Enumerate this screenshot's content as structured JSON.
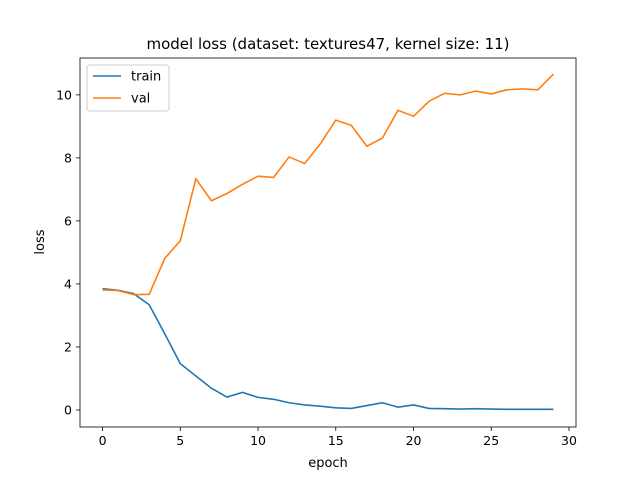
{
  "chart_data": {
    "type": "line",
    "title": "model loss (dataset: textures47, kernel size: 11)",
    "xlabel": "epoch",
    "ylabel": "loss",
    "xlim": [
      -1.45,
      30.45
    ],
    "ylim": [
      -0.54,
      11.17
    ],
    "xticks": [
      0,
      5,
      10,
      15,
      20,
      25,
      30
    ],
    "yticks": [
      0,
      2,
      4,
      6,
      8,
      10
    ],
    "grid": false,
    "legend_position": "upper left",
    "x": [
      0,
      1,
      2,
      3,
      4,
      5,
      6,
      7,
      8,
      9,
      10,
      11,
      12,
      13,
      14,
      15,
      16,
      17,
      18,
      19,
      20,
      21,
      22,
      23,
      24,
      25,
      26,
      27,
      28,
      29
    ],
    "series": [
      {
        "name": "train",
        "color": "#1f77b4",
        "values": [
          3.85,
          3.8,
          3.69,
          3.34,
          2.42,
          1.47,
          1.08,
          0.69,
          0.41,
          0.56,
          0.4,
          0.34,
          0.23,
          0.16,
          0.12,
          0.07,
          0.05,
          0.14,
          0.23,
          0.09,
          0.16,
          0.05,
          0.04,
          0.03,
          0.04,
          0.03,
          0.02,
          0.02,
          0.02,
          0.02
        ]
      },
      {
        "name": "val",
        "color": "#ff7f0e",
        "values": [
          3.81,
          3.79,
          3.66,
          3.67,
          4.81,
          5.37,
          7.34,
          6.64,
          6.87,
          7.16,
          7.42,
          7.38,
          8.03,
          7.82,
          8.44,
          9.2,
          9.03,
          8.37,
          8.63,
          9.51,
          9.32,
          9.8,
          10.05,
          10.0,
          10.12,
          10.03,
          10.16,
          10.19,
          10.16,
          10.66
        ]
      }
    ]
  }
}
